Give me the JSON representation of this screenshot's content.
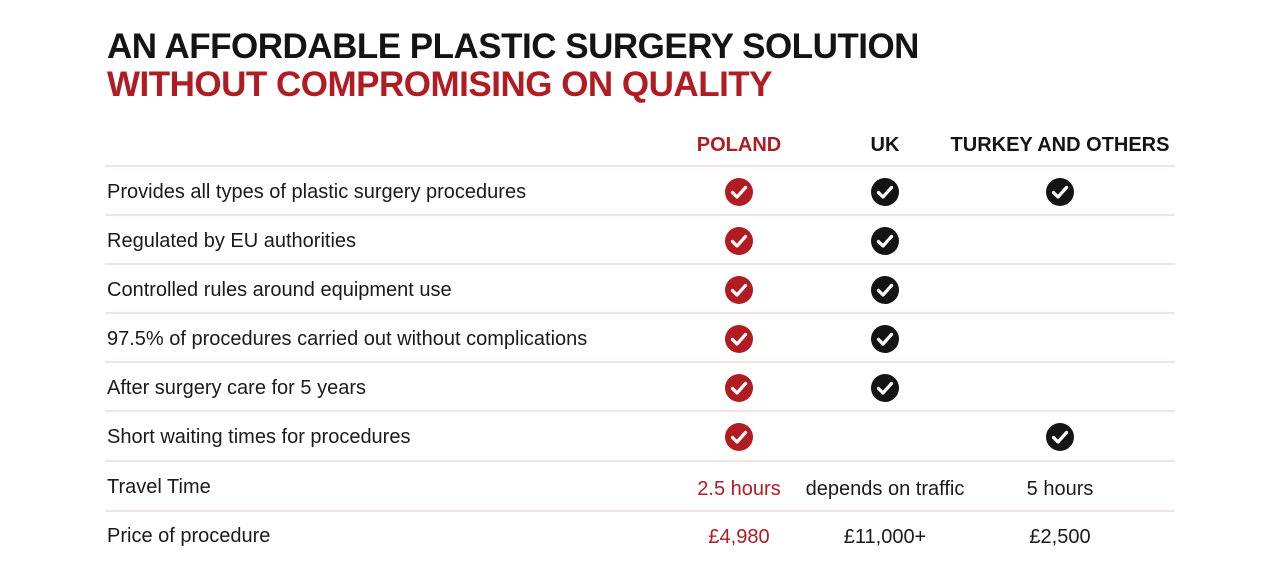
{
  "title": {
    "line1": "AN AFFORDABLE PLASTIC SURGERY SOLUTION",
    "line2": "WITHOUT COMPROMISING ON QUALITY"
  },
  "columns": {
    "poland": "POLAND",
    "uk": "UK",
    "turkey": "TURKEY AND OTHERS"
  },
  "colors": {
    "accent_red": "#b01c21",
    "dark": "#141414",
    "divider": "#f1e3e3"
  },
  "icons": {
    "check_red": "check-circle-red-icon",
    "check_black": "check-circle-black-icon"
  },
  "rows": [
    {
      "label": "Provides all types of plastic surgery procedures",
      "poland": true,
      "uk": true,
      "turkey": true
    },
    {
      "label": "Regulated by EU authorities",
      "poland": true,
      "uk": true,
      "turkey": false
    },
    {
      "label": "Controlled rules around equipment use",
      "poland": true,
      "uk": true,
      "turkey": false
    },
    {
      "label": "97.5% of procedures carried out without complications",
      "poland": true,
      "uk": true,
      "turkey": false
    },
    {
      "label": "After surgery care for 5 years",
      "poland": true,
      "uk": true,
      "turkey": false
    },
    {
      "label": "Short waiting times for procedures",
      "poland": true,
      "uk": false,
      "turkey": true
    }
  ],
  "travel": {
    "label": "Travel Time",
    "poland": "2.5 hours",
    "uk": "depends on traffic",
    "turkey": "5 hours"
  },
  "price": {
    "label": "Price of procedure",
    "poland": "£4,980",
    "uk": "£11,000+",
    "turkey": "£2,500"
  }
}
